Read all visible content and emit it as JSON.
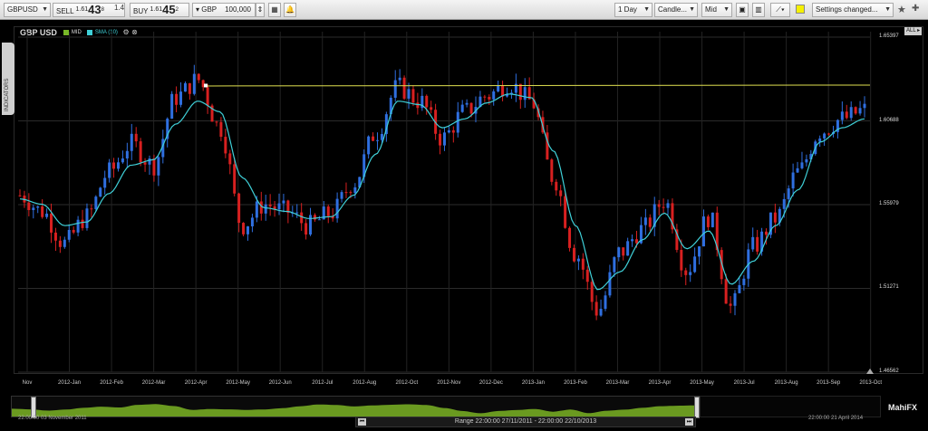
{
  "toolbar": {
    "symbol": "GBPUSD",
    "sell_label": "SELL",
    "sell_price_small": "1.61",
    "sell_price_big": "43",
    "sell_price_sup": "8",
    "spread": "1.4",
    "buy_label": "BUY",
    "buy_price_small": "1.61",
    "buy_price_big": "45",
    "buy_price_sup": "2",
    "currency": "GBP",
    "amount": "100,000",
    "interval": "1 Day",
    "chart_type": "Candle...",
    "price_type": "Mid",
    "settings": "Settings changed..."
  },
  "chart": {
    "instrument": "GBP USD",
    "mid_label": "MID",
    "sma_label": "SMA (10)",
    "indicators_tab": "INDICATORS",
    "all_button": "ALL",
    "y_ticks": [
      "1.65397",
      "1.60688",
      "1.55979",
      "1.51271",
      "1.46562"
    ],
    "x_ticks": [
      "Nov",
      "2012-Jan",
      "2012-Feb",
      "2012-Mar",
      "2012-Apr",
      "2012-May",
      "2012-Jun",
      "2012-Jul",
      "2012-Aug",
      "2012-Oct",
      "2012-Nov",
      "2012-Dec",
      "2013-Jan",
      "2013-Feb",
      "2013-Mar",
      "2013-Apr",
      "2013-May",
      "2013-Jul",
      "2013-Aug",
      "2013-Sep",
      "2013-Oct"
    ]
  },
  "chart_data": {
    "type": "line",
    "title": "GBP USD",
    "ylim": [
      1.46562,
      1.65397
    ],
    "series": [
      {
        "name": "MID",
        "values": [
          1.565,
          1.556,
          1.538,
          1.553,
          1.578,
          1.594,
          1.582,
          1.62,
          1.63,
          1.603,
          1.548,
          1.56,
          1.556,
          1.548,
          1.555,
          1.572,
          1.6,
          1.626,
          1.618,
          1.597,
          1.612,
          1.621,
          1.628,
          1.618,
          1.575,
          1.532,
          1.5,
          1.533,
          1.546,
          1.562,
          1.523,
          1.553,
          1.502,
          1.536,
          1.552,
          1.578,
          1.601,
          1.608,
          1.613
        ]
      },
      {
        "name": "SMA (10)",
        "values": [
          1.563,
          1.56,
          1.548,
          1.55,
          1.566,
          1.582,
          1.585,
          1.605,
          1.618,
          1.612,
          1.575,
          1.558,
          1.556,
          1.552,
          1.553,
          1.565,
          1.588,
          1.618,
          1.616,
          1.603,
          1.608,
          1.617,
          1.622,
          1.62,
          1.59,
          1.548,
          1.512,
          1.522,
          1.54,
          1.555,
          1.535,
          1.545,
          1.515,
          1.528,
          1.548,
          1.568,
          1.595,
          1.603,
          1.608
        ]
      }
    ],
    "reference_line": 1.6265,
    "grid": true
  },
  "footer": {
    "start_date": "22:00:00 03 November 2011",
    "range_text": "Range 22:00:00 27/11/2011 - 22:00:00 22/10/2013",
    "end_date": "22:00:00 21 April 2014",
    "logo": "MahiFX"
  },
  "colors": {
    "up_candle": "#2f6fe0",
    "down_candle": "#d82020",
    "sma": "#3fd0d8",
    "reference": "#e0e050",
    "navigator": "#6a9a20"
  }
}
